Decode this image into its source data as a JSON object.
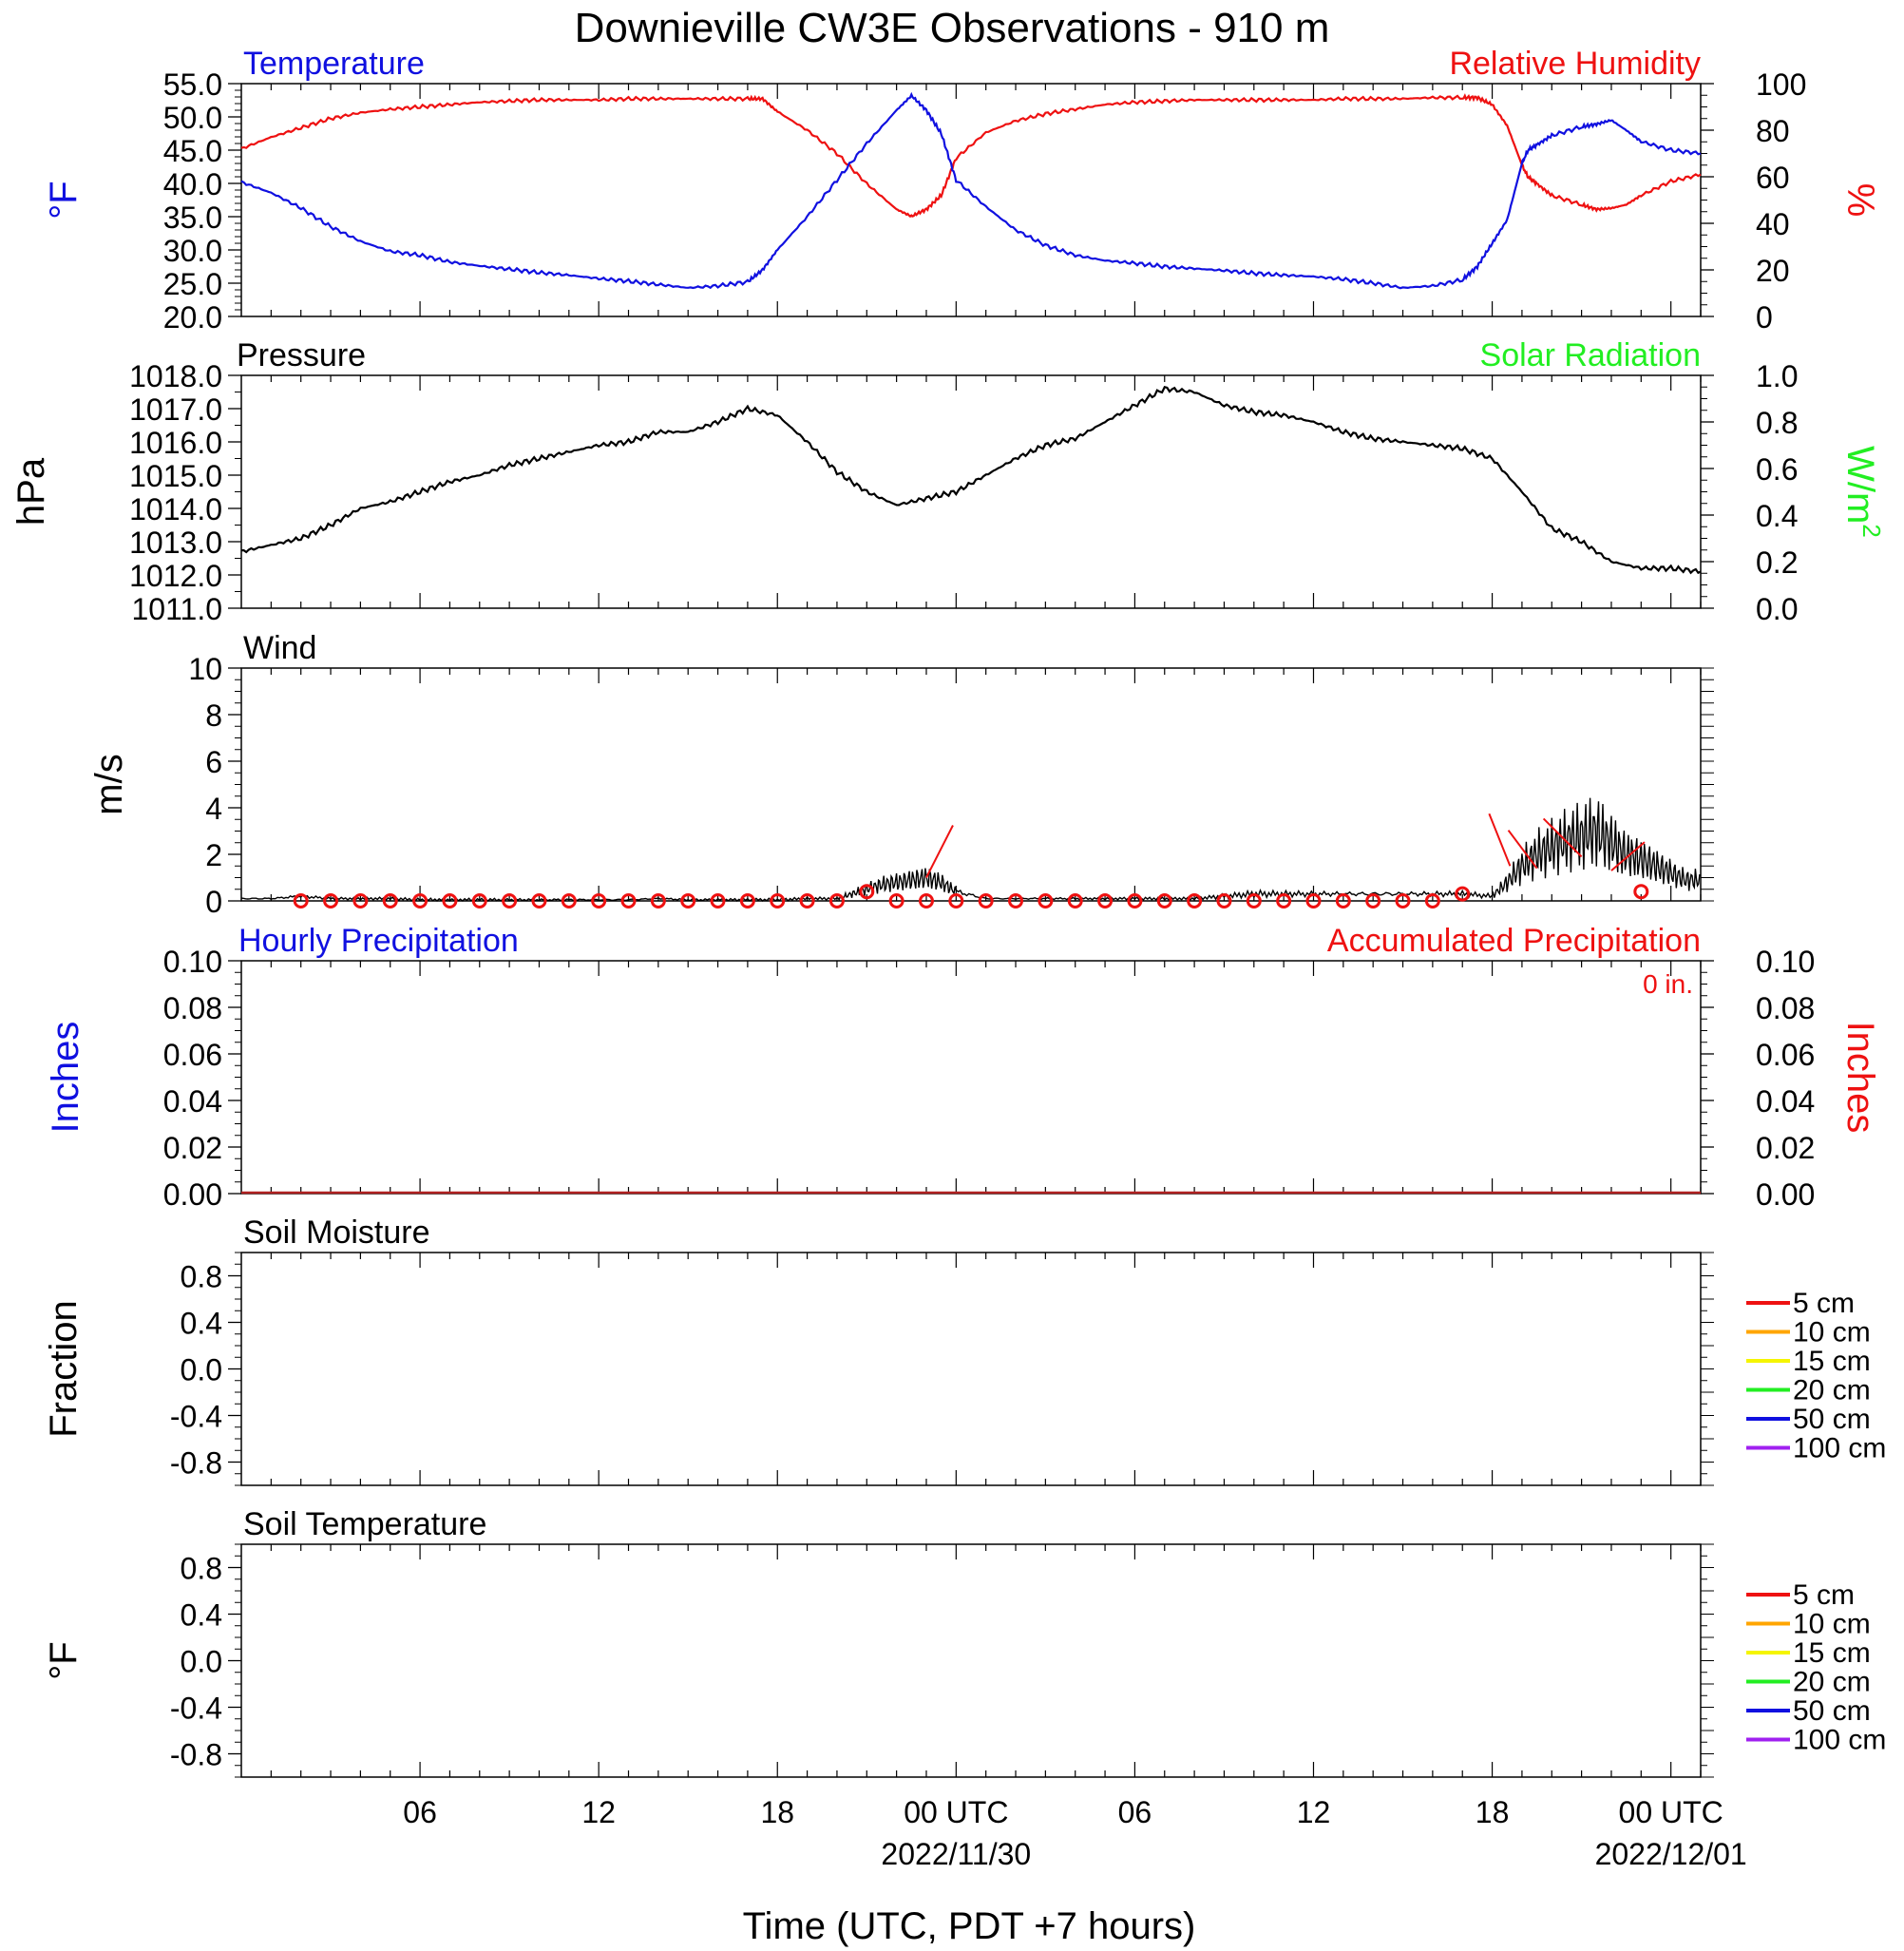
{
  "title": "Downieville CW3E Observations - 910 m",
  "xaxis_title": "Time (UTC, PDT +7 hours)",
  "x_ticks": [
    {
      "hour": 6,
      "label": "06",
      "sub": ""
    },
    {
      "hour": 12,
      "label": "12",
      "sub": ""
    },
    {
      "hour": 18,
      "label": "18",
      "sub": ""
    },
    {
      "hour": 24,
      "label": "00 UTC",
      "sub": "2022/11/30"
    },
    {
      "hour": 30,
      "label": "06",
      "sub": ""
    },
    {
      "hour": 36,
      "label": "12",
      "sub": ""
    },
    {
      "hour": 42,
      "label": "18",
      "sub": ""
    },
    {
      "hour": 48,
      "label": "00 UTC",
      "sub": "2022/12/01"
    }
  ],
  "panels": {
    "temp_rh": {
      "left_title": "Temperature",
      "right_title": "Relative Humidity",
      "left_unit": "°F",
      "right_unit": "%",
      "left_ticks": [
        "55.0",
        "50.0",
        "45.0",
        "40.0",
        "35.0",
        "30.0",
        "25.0",
        "20.0"
      ],
      "right_ticks": [
        "100",
        "80",
        "60",
        "40",
        "20",
        "0"
      ],
      "colors": {
        "temperature": "#1010e0",
        "humidity": "#ee1111"
      }
    },
    "pressure": {
      "left_title": "Pressure",
      "right_title": "Solar Radiation",
      "left_unit": "hPa",
      "right_unit_base": "W/m",
      "right_unit_sup": "2",
      "left_ticks": [
        "1018.0",
        "1017.0",
        "1016.0",
        "1015.0",
        "1014.0",
        "1013.0",
        "1012.0",
        "1011.0"
      ],
      "right_ticks": [
        "1.0",
        "0.8",
        "0.6",
        "0.4",
        "0.2",
        "0.0"
      ],
      "colors": {
        "solar": "#22ee22"
      }
    },
    "wind": {
      "left_title": "Wind",
      "left_unit": "m/s",
      "left_ticks": [
        "10",
        "8",
        "6",
        "4",
        "2",
        "0"
      ],
      "colors": {
        "speed": "#000000",
        "barbs": "#ee1111"
      }
    },
    "precip": {
      "left_title": "Hourly Precipitation",
      "right_title": "Accumulated Precipitation",
      "total_label": "0 in.",
      "left_unit": "Inches",
      "right_unit": "Inches",
      "left_ticks": [
        "0.10",
        "0.08",
        "0.06",
        "0.04",
        "0.02",
        "0.00"
      ],
      "right_ticks": [
        "0.10",
        "0.08",
        "0.06",
        "0.04",
        "0.02",
        "0.00"
      ]
    },
    "soil_moisture": {
      "left_title": "Soil Moisture",
      "left_unit": "Fraction",
      "left_ticks": [
        "0.8",
        "0.4",
        "0.0",
        "-0.4",
        "-0.8"
      ],
      "legend": [
        {
          "label": "5 cm",
          "color": "#ee1111"
        },
        {
          "label": "10 cm",
          "color": "#ffa500"
        },
        {
          "label": "15 cm",
          "color": "#f5f500"
        },
        {
          "label": "20 cm",
          "color": "#22ee22"
        },
        {
          "label": "50 cm",
          "color": "#1010e0"
        },
        {
          "label": "100 cm",
          "color": "#a020f0"
        }
      ]
    },
    "soil_temp": {
      "left_title": "Soil Temperature",
      "left_unit": "°F",
      "left_ticks": [
        "0.8",
        "0.4",
        "0.0",
        "-0.4",
        "-0.8"
      ],
      "legend": [
        {
          "label": "5 cm",
          "color": "#ee1111"
        },
        {
          "label": "10 cm",
          "color": "#ffa500"
        },
        {
          "label": "15 cm",
          "color": "#f5f500"
        },
        {
          "label": "20 cm",
          "color": "#22ee22"
        },
        {
          "label": "50 cm",
          "color": "#1010e0"
        },
        {
          "label": "100 cm",
          "color": "#a020f0"
        }
      ]
    }
  },
  "chart_data": [
    {
      "type": "line",
      "x_unit": "hours since 2022-11-29 00 UTC",
      "xlim": [
        0,
        49
      ],
      "series": [
        {
          "name": "Temperature",
          "axis": "left",
          "unit": "°F",
          "ylim": [
            20,
            55
          ],
          "x": [
            0,
            1,
            2,
            3,
            4,
            5,
            6,
            7,
            8,
            9,
            10,
            11,
            12,
            13,
            14,
            15,
            16,
            17,
            17.5,
            18,
            19,
            20,
            21,
            22,
            22.5,
            23,
            23.5,
            24,
            25,
            26,
            27,
            28,
            29,
            30,
            31,
            32,
            33,
            34,
            35,
            36,
            37,
            38,
            39,
            40,
            41,
            41.5,
            42,
            42.5,
            43,
            43.2,
            43.5,
            44,
            45,
            45.5,
            46,
            46.5,
            47,
            48,
            49
          ],
          "y": [
            40.2,
            38.6,
            36.3,
            33.5,
            31.3,
            29.8,
            29.2,
            28.2,
            27.6,
            27.1,
            26.6,
            26.2,
            25.7,
            25.3,
            24.8,
            24.3,
            24.6,
            25.2,
            27.0,
            30.0,
            35.0,
            40.5,
            46.0,
            51.0,
            53.2,
            51.0,
            47.5,
            40.5,
            36.5,
            33.0,
            30.7,
            29.2,
            28.4,
            28.0,
            27.5,
            27.2,
            26.9,
            26.5,
            26.2,
            26.0,
            25.6,
            25.0,
            24.3,
            24.6,
            25.5,
            27.5,
            31.0,
            34.5,
            43.0,
            45.0,
            45.8,
            47.2,
            48.5,
            48.9,
            49.5,
            48.0,
            46.3,
            45.0,
            44.5
          ]
        },
        {
          "name": "Relative Humidity",
          "axis": "right",
          "unit": "%",
          "ylim": [
            0,
            100
          ],
          "x": [
            0,
            1,
            2,
            3,
            4,
            5,
            6,
            7,
            8,
            9,
            10,
            11,
            12,
            13,
            14,
            15,
            16,
            17,
            17.5,
            18,
            19,
            20,
            21,
            22,
            22.5,
            23,
            23.5,
            24,
            25,
            26,
            27,
            28,
            29,
            30,
            31,
            32,
            33,
            34,
            35,
            36,
            37,
            38,
            39,
            40,
            41,
            41.5,
            42,
            42.5,
            43,
            43.2,
            43.5,
            44,
            45,
            45.5,
            46,
            46.5,
            47,
            48,
            49
          ],
          "y": [
            72,
            77,
            81,
            85,
            87.5,
            89,
            90,
            91,
            92,
            92.5,
            93,
            93,
            93,
            93.5,
            93.5,
            93.5,
            93.5,
            93.5,
            93.5,
            88,
            80,
            70,
            57,
            46,
            43,
            46,
            52,
            68,
            79,
            84,
            87,
            89,
            91,
            92,
            92.5,
            93,
            93,
            93,
            93,
            93,
            93.5,
            93.5,
            93.5,
            94,
            94,
            94,
            91,
            82,
            65,
            60,
            57,
            52,
            48,
            46,
            46.5,
            48,
            52,
            58,
            61
          ]
        }
      ]
    },
    {
      "type": "line",
      "x_unit": "hours since 2022-11-29 00 UTC",
      "xlim": [
        0,
        49
      ],
      "series": [
        {
          "name": "Pressure",
          "axis": "left",
          "unit": "hPa",
          "ylim": [
            1011,
            1018
          ],
          "x": [
            0,
            1,
            2,
            3,
            4,
            5,
            6,
            7,
            8,
            9,
            10,
            11,
            12,
            13,
            14,
            15,
            16,
            17,
            18,
            19,
            20,
            21,
            22,
            23,
            24,
            25,
            26,
            27,
            28,
            29,
            30,
            31,
            32,
            33,
            34,
            35,
            36,
            37,
            38,
            39,
            40,
            41,
            42,
            43,
            44,
            45,
            46,
            47,
            48,
            49
          ],
          "y": [
            1012.7,
            1012.9,
            1013.1,
            1013.5,
            1014.0,
            1014.2,
            1014.5,
            1014.8,
            1015.0,
            1015.3,
            1015.5,
            1015.7,
            1015.9,
            1016.0,
            1016.3,
            1016.3,
            1016.6,
            1017.0,
            1016.8,
            1016.0,
            1015.1,
            1014.5,
            1014.1,
            1014.3,
            1014.5,
            1015.0,
            1015.5,
            1015.9,
            1016.1,
            1016.6,
            1017.1,
            1017.6,
            1017.5,
            1017.1,
            1016.9,
            1016.8,
            1016.6,
            1016.3,
            1016.1,
            1016.0,
            1015.9,
            1015.8,
            1015.5,
            1014.5,
            1013.4,
            1013.0,
            1012.4,
            1012.2,
            1012.2,
            1012.1
          ]
        },
        {
          "name": "Solar Radiation",
          "axis": "right",
          "unit": "W/m2",
          "ylim": [
            0,
            1
          ],
          "x": [],
          "y": []
        }
      ]
    },
    {
      "type": "line",
      "x_unit": "hours since 2022-11-29 00 UTC",
      "xlim": [
        0,
        49
      ],
      "ylim": [
        0,
        10
      ],
      "series": [
        {
          "name": "Wind",
          "unit": "m/s",
          "x": [
            0,
            1,
            2,
            3,
            4,
            5,
            6,
            7,
            8,
            9,
            10,
            11,
            12,
            13,
            14,
            15,
            16,
            17,
            18,
            19,
            20,
            20.5,
            21,
            21.5,
            22,
            22.5,
            23,
            23.5,
            24,
            25,
            26,
            27,
            28,
            29,
            30,
            31,
            32,
            33,
            34,
            35,
            36,
            37,
            38,
            39,
            40,
            41,
            42,
            42.5,
            43,
            43.5,
            44,
            44.5,
            45,
            45.5,
            46,
            46.5,
            47,
            47.5,
            48,
            48.5,
            49
          ],
          "y": [
            0.1,
            0.1,
            0.2,
            0.1,
            0.1,
            0.1,
            0.05,
            0.05,
            0.05,
            0.05,
            0.05,
            0.05,
            0.05,
            0.05,
            0.1,
            0.05,
            0.05,
            0.05,
            0.05,
            0.1,
            0.1,
            0.3,
            0.5,
            0.7,
            0.8,
            0.9,
            1.0,
            0.8,
            0.4,
            0.1,
            0.1,
            0.1,
            0.1,
            0.1,
            0.1,
            0.1,
            0.1,
            0.2,
            0.3,
            0.3,
            0.3,
            0.3,
            0.3,
            0.3,
            0.3,
            0.3,
            0.2,
            0.8,
            1.5,
            2.0,
            2.3,
            2.6,
            2.8,
            3.0,
            2.5,
            2.0,
            1.8,
            1.5,
            1.2,
            0.9,
            0.9
          ]
        },
        {
          "name": "Hourly wind markers",
          "unit": "m/s",
          "x": [
            2,
            3,
            4,
            5,
            6,
            7,
            8,
            9,
            10,
            11,
            12,
            13,
            14,
            15,
            16,
            17,
            18,
            19,
            20,
            21,
            22,
            23,
            24,
            25,
            26,
            27,
            28,
            29,
            30,
            31,
            32,
            33,
            34,
            35,
            36,
            37,
            38,
            39,
            40,
            41,
            47
          ],
          "y": [
            0,
            0,
            0,
            0,
            0,
            0,
            0,
            0,
            0,
            0,
            0,
            0,
            0,
            0,
            0,
            0,
            0,
            0,
            0,
            0.4,
            0,
            0,
            0,
            0,
            0,
            0,
            0,
            0,
            0,
            0,
            0,
            0,
            0,
            0,
            0,
            0,
            0,
            0,
            0,
            0.3,
            0.4
          ]
        }
      ]
    },
    {
      "type": "line",
      "x_unit": "hours since 2022-11-29 00 UTC",
      "xlim": [
        0,
        49
      ],
      "series": [
        {
          "name": "Hourly Precipitation",
          "unit": "Inches",
          "ylim": [
            0,
            0.1
          ],
          "x": [
            0,
            49
          ],
          "y": [
            0,
            0
          ]
        },
        {
          "name": "Accumulated Precipitation",
          "unit": "Inches",
          "ylim": [
            0,
            0.1
          ],
          "x": [
            0,
            49
          ],
          "y": [
            0,
            0
          ]
        }
      ]
    },
    {
      "type": "line",
      "ylim": [
        -1,
        1
      ],
      "series": []
    },
    {
      "type": "line",
      "ylim": [
        -1,
        1
      ],
      "series": []
    }
  ]
}
